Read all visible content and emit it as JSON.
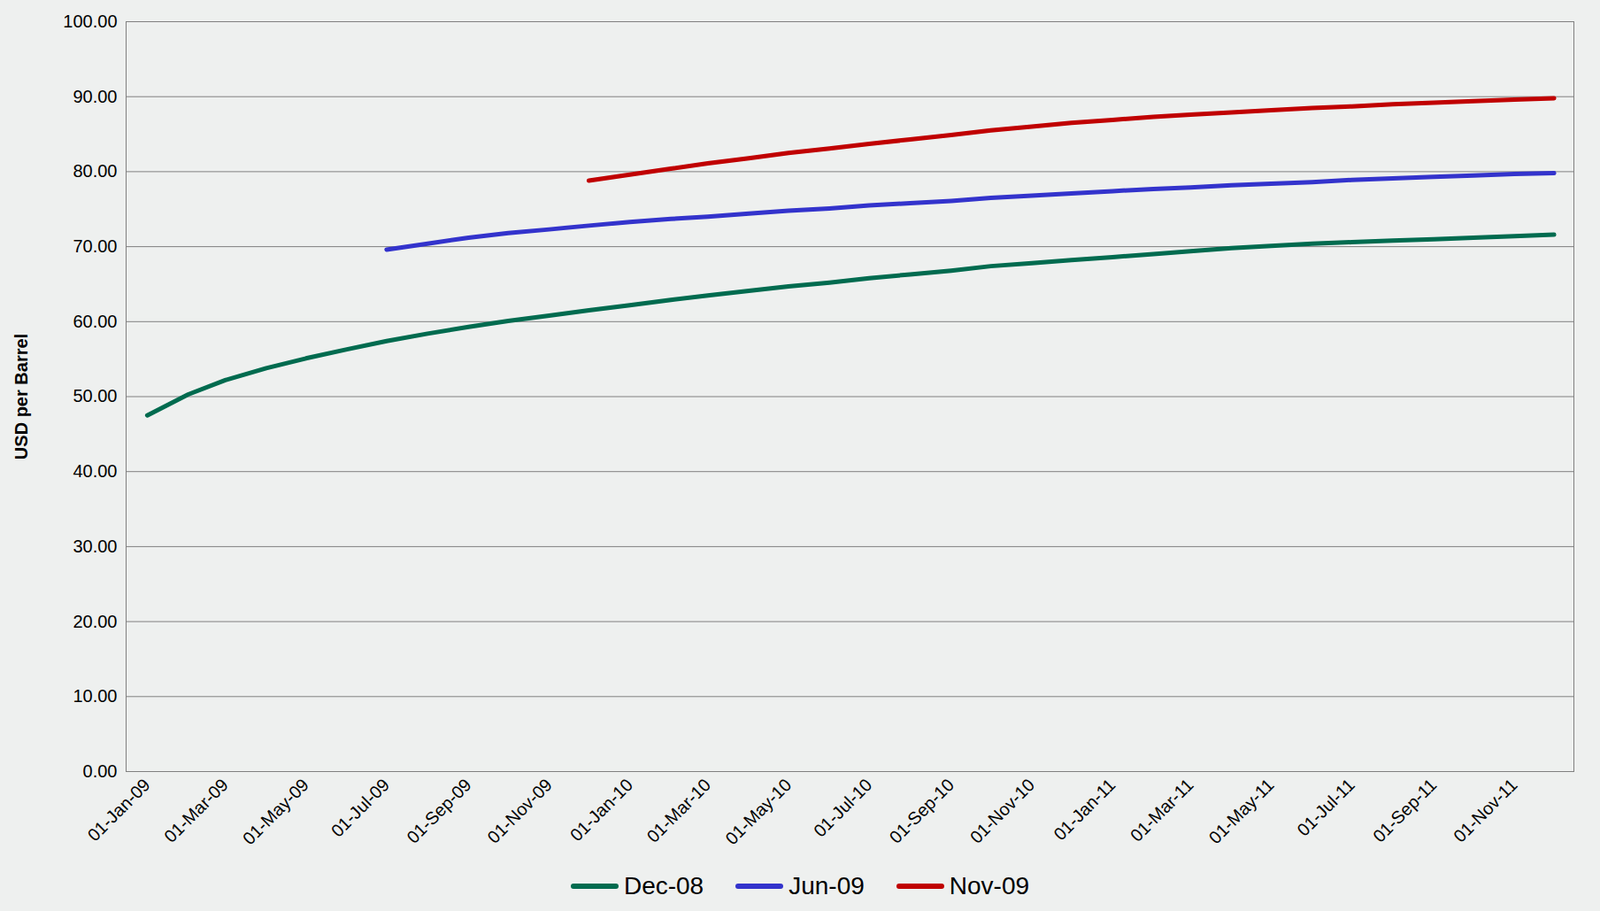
{
  "chart_data": {
    "type": "line",
    "y_label": "USD per Barrel",
    "x": [
      "2009-01-01",
      "2009-02-01",
      "2009-03-01",
      "2009-04-01",
      "2009-05-01",
      "2009-06-01",
      "2009-07-01",
      "2009-08-01",
      "2009-09-01",
      "2009-10-01",
      "2009-11-01",
      "2009-12-01",
      "2010-01-01",
      "2010-02-01",
      "2010-03-01",
      "2010-04-01",
      "2010-05-01",
      "2010-06-01",
      "2010-07-01",
      "2010-08-01",
      "2010-09-01",
      "2010-10-01",
      "2010-11-01",
      "2010-12-01",
      "2011-01-01",
      "2011-02-01",
      "2011-03-01",
      "2011-04-01",
      "2011-05-01",
      "2011-06-01",
      "2011-07-01",
      "2011-08-01",
      "2011-09-01",
      "2011-10-01",
      "2011-11-01",
      "2011-12-01"
    ],
    "series": [
      {
        "name": "Dec-08",
        "color": "#006b4f",
        "values": [
          47.5,
          50.3,
          52.2,
          53.8,
          55.1,
          56.3,
          57.4,
          58.4,
          59.3,
          60.1,
          60.8,
          61.5,
          62.2,
          62.9,
          63.5,
          64.1,
          64.7,
          65.2,
          65.8,
          66.3,
          66.8,
          67.4,
          67.8,
          68.2,
          68.6,
          69.0,
          69.4,
          69.8,
          70.1,
          70.4,
          70.6,
          70.8,
          71.0,
          71.2,
          71.4,
          71.6
        ]
      },
      {
        "name": "Jun-09",
        "color": "#3333cc",
        "values": [
          null,
          null,
          null,
          null,
          null,
          null,
          69.6,
          70.4,
          71.2,
          71.8,
          72.3,
          72.8,
          73.3,
          73.7,
          74.0,
          74.4,
          74.8,
          75.1,
          75.5,
          75.8,
          76.1,
          76.5,
          76.8,
          77.1,
          77.4,
          77.7,
          77.9,
          78.2,
          78.4,
          78.6,
          78.9,
          79.1,
          79.3,
          79.5,
          79.7,
          79.8
        ]
      },
      {
        "name": "Nov-09",
        "color": "#c00000",
        "values": [
          null,
          null,
          null,
          null,
          null,
          null,
          null,
          null,
          null,
          null,
          null,
          78.8,
          79.6,
          80.4,
          81.1,
          81.8,
          82.5,
          83.1,
          83.7,
          84.3,
          84.9,
          85.5,
          86.0,
          86.5,
          86.9,
          87.3,
          87.6,
          87.9,
          88.2,
          88.5,
          88.7,
          89.0,
          89.2,
          89.4,
          89.6,
          89.8
        ]
      }
    ],
    "xlim": [
      "2008-12-16",
      "2011-12-16"
    ],
    "xticks": [
      {
        "value": "2009-01-01",
        "label": "01-Jan-09"
      },
      {
        "value": "2009-03-01",
        "label": "01-Mar-09"
      },
      {
        "value": "2009-05-01",
        "label": "01-May-09"
      },
      {
        "value": "2009-07-01",
        "label": "01-Jul-09"
      },
      {
        "value": "2009-09-01",
        "label": "01-Sep-09"
      },
      {
        "value": "2009-11-01",
        "label": "01-Nov-09"
      },
      {
        "value": "2010-01-01",
        "label": "01-Jan-10"
      },
      {
        "value": "2010-03-01",
        "label": "01-Mar-10"
      },
      {
        "value": "2010-05-01",
        "label": "01-May-10"
      },
      {
        "value": "2010-07-01",
        "label": "01-Jul-10"
      },
      {
        "value": "2010-09-01",
        "label": "01-Sep-10"
      },
      {
        "value": "2010-11-01",
        "label": "01-Nov-10"
      },
      {
        "value": "2011-01-01",
        "label": "01-Jan-11"
      },
      {
        "value": "2011-03-01",
        "label": "01-Mar-11"
      },
      {
        "value": "2011-05-01",
        "label": "01-May-11"
      },
      {
        "value": "2011-07-01",
        "label": "01-Jul-11"
      },
      {
        "value": "2011-09-01",
        "label": "01-Sep-11"
      },
      {
        "value": "2011-11-01",
        "label": "01-Nov-11"
      }
    ],
    "ylim": [
      0,
      100
    ],
    "yticks": [
      {
        "value": 0,
        "label": "0.00"
      },
      {
        "value": 10,
        "label": "10.00"
      },
      {
        "value": 20,
        "label": "20.00"
      },
      {
        "value": 30,
        "label": "30.00"
      },
      {
        "value": 40,
        "label": "40.00"
      },
      {
        "value": 50,
        "label": "50.00"
      },
      {
        "value": 60,
        "label": "60.00"
      },
      {
        "value": 70,
        "label": "70.00"
      },
      {
        "value": 80,
        "label": "80.00"
      },
      {
        "value": 90,
        "label": "90.00"
      },
      {
        "value": 100,
        "label": "100.00"
      }
    ],
    "grid": true,
    "legend": "bottom"
  }
}
